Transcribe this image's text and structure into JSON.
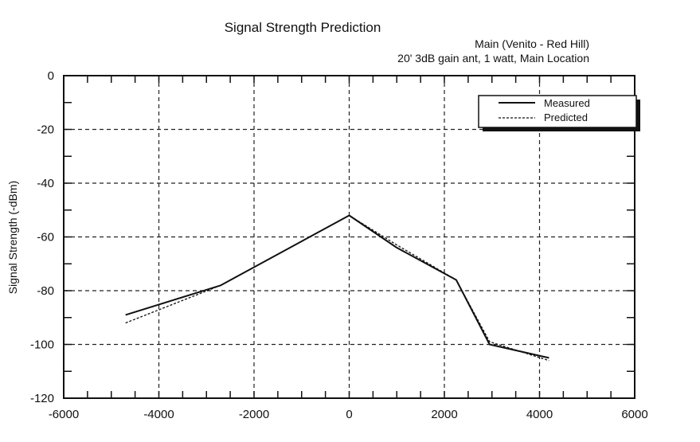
{
  "chart_data": {
    "type": "line",
    "title": "Signal Strength Prediction",
    "subtitle_lines": [
      "Main (Venito - Red Hill)",
      "20' 3dB gain ant, 1 watt, Main Location"
    ],
    "xlabel": "",
    "ylabel": "Signal Strength (-dBm)",
    "xlim": [
      -6000,
      6000
    ],
    "ylim": [
      -120,
      0
    ],
    "x_ticks": [
      -6000,
      -4000,
      -2000,
      0,
      2000,
      4000,
      6000
    ],
    "y_ticks": [
      0,
      -20,
      -40,
      -60,
      -80,
      -100,
      -120
    ],
    "grid": true,
    "legend_position": "top-right",
    "series": [
      {
        "name": "Measured",
        "style": "solid",
        "color": "#111111",
        "x": [
          -4700,
          -2700,
          0,
          1000,
          2250,
          2950,
          4200
        ],
        "y": [
          -89,
          -78,
          -52,
          -64,
          -76,
          -100,
          -105
        ]
      },
      {
        "name": "Predicted",
        "style": "dashed",
        "color": "#111111",
        "x": [
          -4700,
          -2700,
          0,
          1000,
          2250,
          2950,
          4200
        ],
        "y": [
          -92,
          -78,
          -52,
          -63,
          -76,
          -99,
          -106
        ]
      }
    ]
  }
}
